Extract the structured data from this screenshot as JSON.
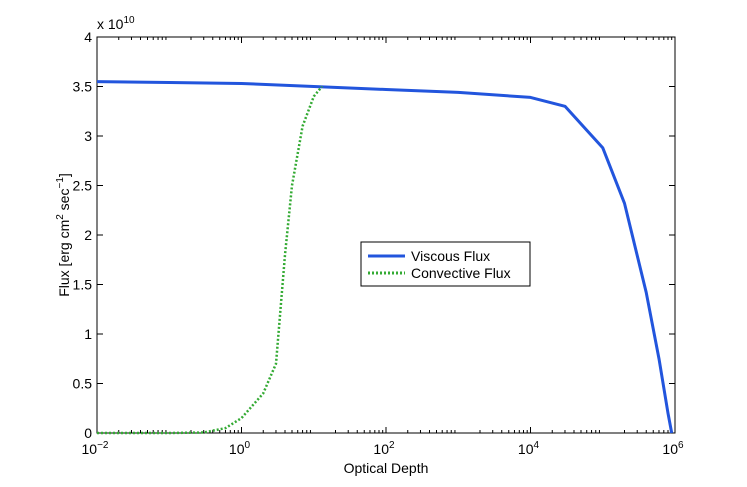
{
  "chart_data": {
    "type": "line",
    "xlabel": "Optical Depth",
    "ylabel_main": "Flux [erg cm",
    "ylabel_sup1": "2",
    "ylabel_mid": " sec",
    "ylabel_sup2": "−1",
    "ylabel_end": "]",
    "xscale": "log",
    "xlim": [
      0.01,
      1000000
    ],
    "ylim": [
      0,
      40000000000
    ],
    "y_multiplier_base": "x 10",
    "y_multiplier_exp": "10",
    "x_ticks": [
      {
        "base": "10",
        "exp": "−2"
      },
      {
        "base": "10",
        "exp": "0"
      },
      {
        "base": "10",
        "exp": "2"
      },
      {
        "base": "10",
        "exp": "4"
      },
      {
        "base": "10",
        "exp": "6"
      }
    ],
    "x_tick_values": [
      0.01,
      1,
      100,
      10000,
      1000000
    ],
    "y_ticks": [
      "0",
      "0.5",
      "1",
      "1.5",
      "2",
      "2.5",
      "3",
      "3.5",
      "4"
    ],
    "y_tick_values": [
      0,
      5000000000,
      10000000000,
      15000000000,
      20000000000,
      25000000000,
      30000000000,
      35000000000,
      40000000000
    ],
    "grid": false,
    "legend_position": "center",
    "series": [
      {
        "name": "Viscous Flux",
        "color": "#2255dd",
        "style": "solid",
        "x": [
          0.01,
          0.1,
          1,
          10,
          100,
          1000,
          10000,
          30000,
          100000,
          200000,
          400000,
          600000,
          800000,
          900000
        ],
        "y": [
          35500000000,
          35400000000,
          35300000000,
          35000000000,
          34700000000,
          34400000000,
          33900000000,
          33000000000,
          28800000000,
          23200000000,
          14200000000,
          7500000000,
          2000000000,
          0
        ]
      },
      {
        "name": "Convective Flux",
        "color": "#33aa33",
        "style": "dotted",
        "x": [
          0.01,
          0.1,
          0.3,
          0.6,
          1,
          2,
          3,
          4,
          5,
          7,
          10,
          13
        ],
        "y": [
          0,
          0,
          50000000,
          500000000,
          1500000000,
          4000000000,
          7000000000,
          18000000000,
          25000000000,
          31000000000,
          34000000000,
          35000000000
        ]
      }
    ]
  }
}
